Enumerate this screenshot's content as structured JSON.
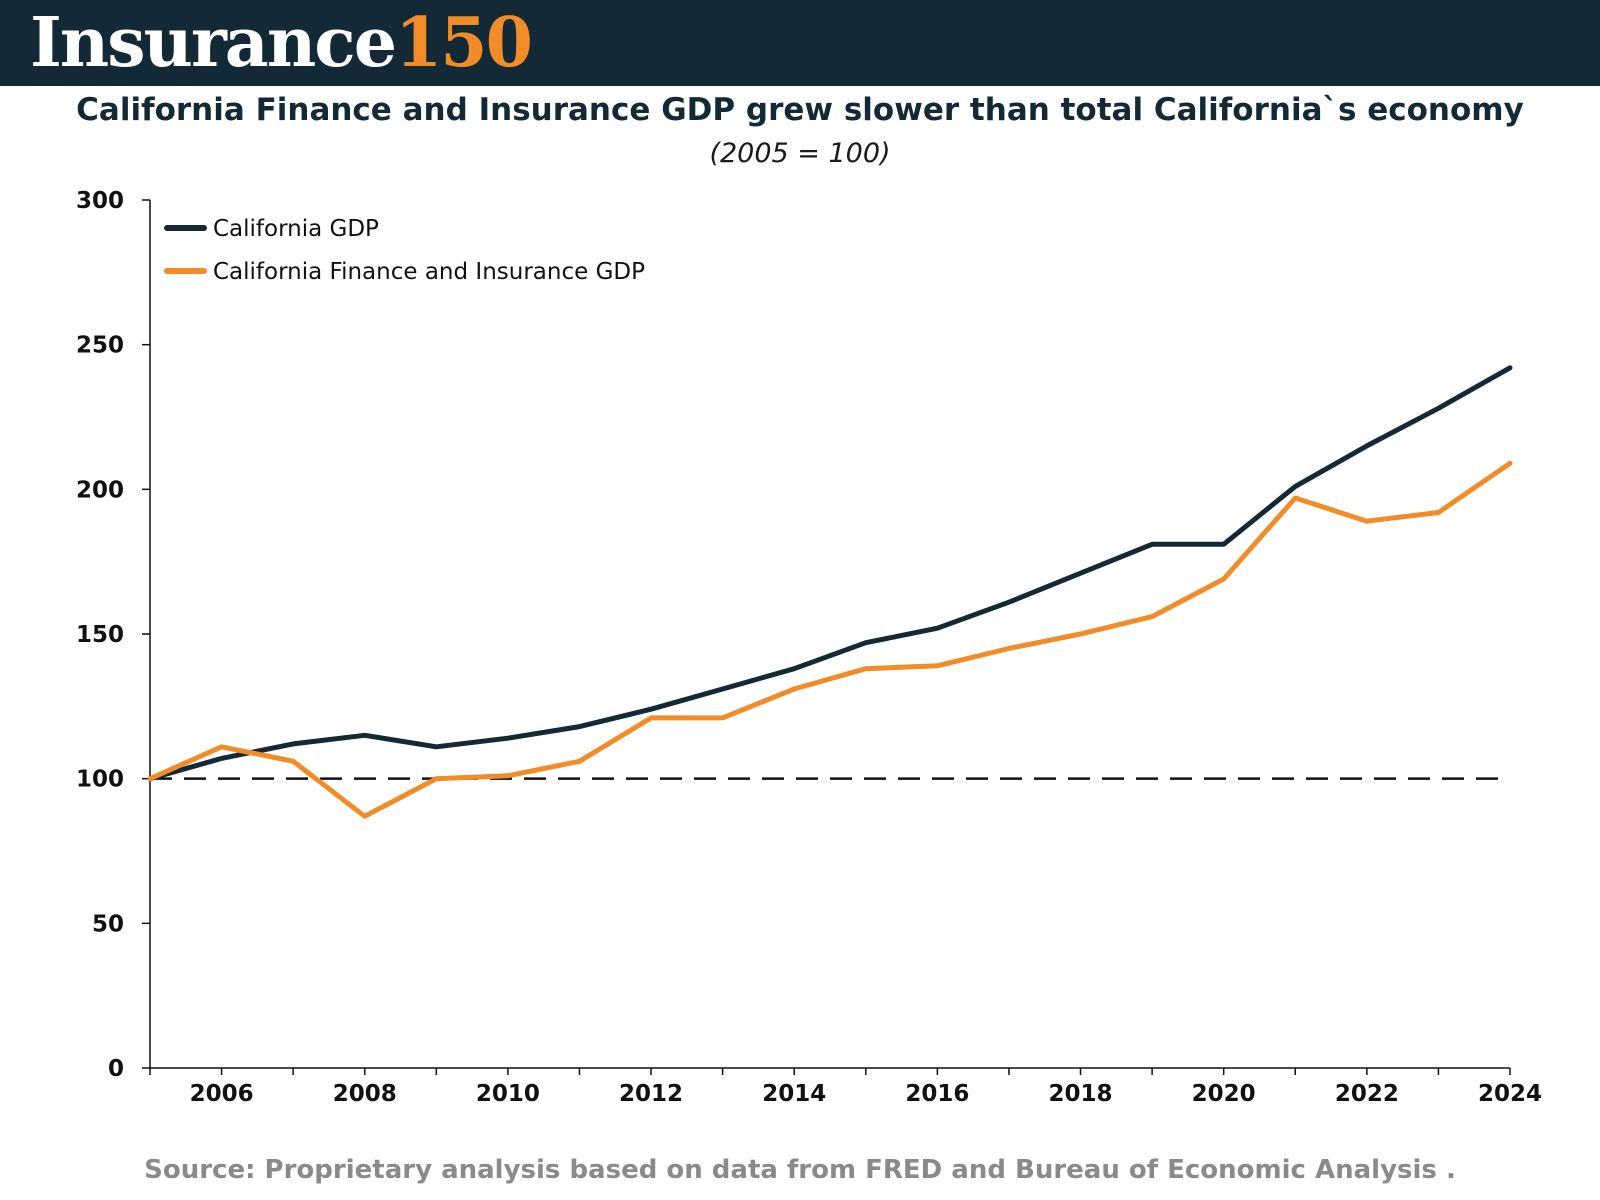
{
  "header": {
    "logo_word": "Insurance",
    "logo_number": "150"
  },
  "colors": {
    "banner": "#132a36",
    "accent": "#f28c28",
    "series_1": "#132a36",
    "series_2": "#f28c28"
  },
  "chart_data": {
    "type": "line",
    "title": "California Finance and Insurance GDP grew slower than total California`s economy",
    "subtitle": "(2005 = 100)",
    "xlabel": "",
    "ylabel": "",
    "x": [
      2005,
      2006,
      2007,
      2008,
      2009,
      2010,
      2011,
      2012,
      2013,
      2014,
      2015,
      2016,
      2017,
      2018,
      2019,
      2020,
      2021,
      2022,
      2023,
      2024
    ],
    "xlim": [
      2005,
      2024
    ],
    "ylim": [
      0,
      300
    ],
    "xticks": [
      2006,
      2008,
      2010,
      2012,
      2014,
      2016,
      2018,
      2020,
      2022,
      2024
    ],
    "yticks": [
      0,
      50,
      100,
      150,
      200,
      250,
      300
    ],
    "grid": false,
    "legend_position": "top-left",
    "reference_line": {
      "y": 100,
      "style": "dashed"
    },
    "series": [
      {
        "name": "California GDP",
        "color": "#132a36",
        "values": [
          100,
          107,
          112,
          115,
          111,
          114,
          118,
          124,
          131,
          138,
          147,
          152,
          161,
          171,
          181,
          181,
          201,
          215,
          228,
          242
        ]
      },
      {
        "name": "California Finance and Insurance GDP",
        "color": "#f28c28",
        "values": [
          100,
          111,
          106,
          87,
          100,
          101,
          106,
          121,
          121,
          131,
          138,
          139,
          145,
          150,
          156,
          169,
          197,
          189,
          192,
          209
        ]
      }
    ]
  },
  "footer": {
    "source": "Source: Proprietary  analysis based on data from FRED and Bureau of Economic Analysis  ."
  }
}
